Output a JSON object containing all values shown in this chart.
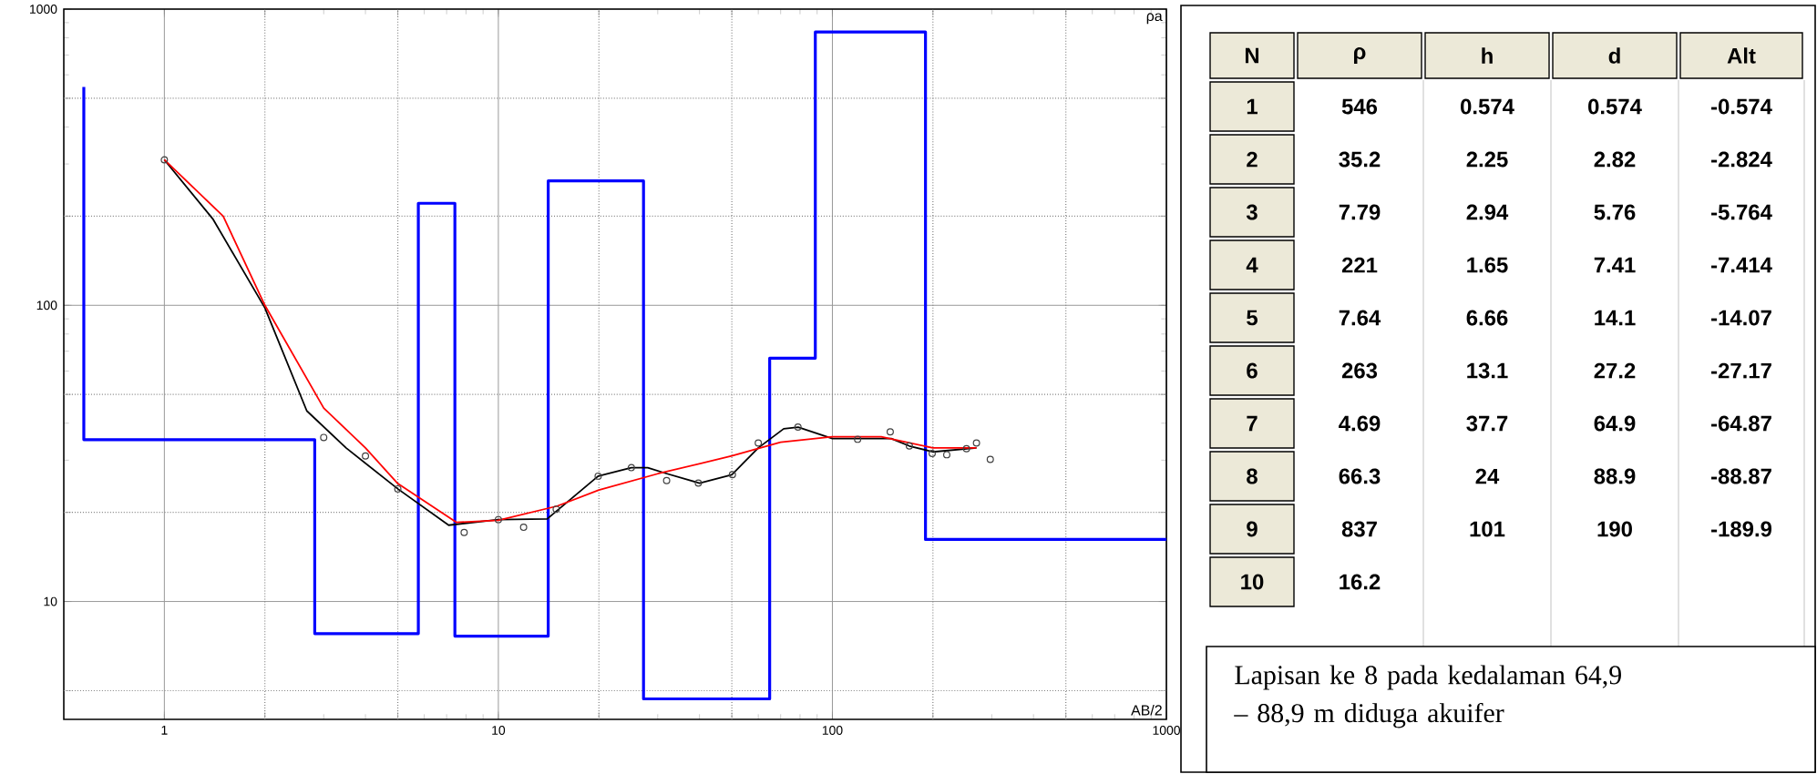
{
  "chart_data": [
    {
      "type": "line",
      "xlabel": "AB/2",
      "ylabel": "ρa",
      "log": "xy",
      "grid": true,
      "xlim": [
        0.5,
        1000
      ],
      "ylim": [
        4,
        1000
      ],
      "xticks": [
        1,
        {
          "value": 2,
          "label": null
        },
        {
          "value": 5,
          "label": null
        },
        10,
        {
          "value": 20,
          "label": null
        },
        {
          "value": 50,
          "label": null
        },
        100,
        {
          "value": 200,
          "label": null
        },
        {
          "value": 500,
          "label": null
        },
        1000
      ],
      "yticks": [
        {
          "value": 5,
          "label": null
        },
        10,
        {
          "value": 20,
          "label": null
        },
        {
          "value": 50,
          "label": null
        },
        100,
        {
          "value": 200,
          "label": null
        },
        {
          "value": 500,
          "label": null
        },
        1000
      ],
      "series": [
        {
          "type": "step",
          "color": "#0000ff",
          "x": [
            0.574,
            2.82,
            5.76,
            7.41,
            14.1,
            27.2,
            64.9,
            88.9,
            190,
            1000
          ],
          "values": [
            546,
            35.2,
            7.79,
            221,
            7.64,
            263,
            4.69,
            66.3,
            837,
            16.2
          ]
        },
        {
          "type": "line",
          "color": "#000000",
          "x": [
            1,
            1.4,
            2,
            2.67,
            3.5,
            5,
            7.1,
            10,
            14,
            19.9,
            25,
            28,
            32,
            40,
            50,
            60,
            71.5,
            79,
            100,
            120,
            150,
            170,
            200,
            270
          ],
          "values": [
            310,
            195,
            98,
            44,
            33,
            24,
            18.1,
            18.9,
            19,
            26.5,
            28.3,
            28.3,
            27,
            25.1,
            26.8,
            33,
            38.3,
            38.8,
            35.5,
            35.5,
            35.5,
            33.5,
            32,
            33
          ]
        },
        {
          "type": "line",
          "color": "#ff0000",
          "x": [
            1,
            1.5,
            2,
            3,
            4,
            5,
            7.5,
            10,
            15,
            20,
            30,
            50,
            70,
            100,
            140,
            200,
            270
          ],
          "values": [
            310,
            200,
            100,
            45,
            33,
            25,
            18.5,
            18.8,
            21,
            23.8,
            27,
            31,
            34.5,
            36,
            36,
            33,
            33
          ]
        },
        {
          "type": "scatter",
          "color": "#404040",
          "marker": "circle",
          "x": [
            1,
            3,
            4,
            5,
            7.9,
            10,
            11.9,
            14.9,
            19.9,
            25,
            31.9,
            39.7,
            50.2,
            60,
            78.9,
            119,
            149,
            170,
            199,
            220,
            252,
            270,
            297
          ],
          "values": [
            310,
            35.8,
            31,
            24,
            17.1,
            18.9,
            17.8,
            20.5,
            26.5,
            28.3,
            25.6,
            25.1,
            26.8,
            34.3,
            38.8,
            35.3,
            37.4,
            33.5,
            31.6,
            31.3,
            32.8,
            34.3,
            30.2
          ]
        }
      ]
    },
    {
      "type": "heatmap",
      "ylabel": "N",
      "data_labels": true,
      "categories": [
        "ρ",
        "h",
        "d",
        "Alt"
      ],
      "y_categories": [
        "1",
        "2",
        "3",
        "4",
        "5",
        "6",
        "7",
        "8",
        "9",
        "10"
      ],
      "cells": [
        [
          546,
          0.574,
          0.574,
          -0.574
        ],
        [
          35.2,
          2.25,
          2.82,
          -2.824
        ],
        [
          7.79,
          2.94,
          5.76,
          -5.764
        ],
        [
          221,
          1.65,
          7.41,
          -7.414
        ],
        [
          7.64,
          6.66,
          14.1,
          -14.07
        ],
        [
          263,
          13.1,
          27.2,
          -27.17
        ],
        [
          4.69,
          37.7,
          64.9,
          -64.87
        ],
        [
          66.3,
          24,
          88.9,
          -88.87
        ],
        [
          837,
          101,
          190,
          -189.9
        ],
        [
          16.2,
          null,
          null,
          null
        ]
      ],
      "annotations": [
        "Lapisan ke 8 pada kedalaman 64,9 – 88,9 m diduga akuifer"
      ]
    }
  ]
}
